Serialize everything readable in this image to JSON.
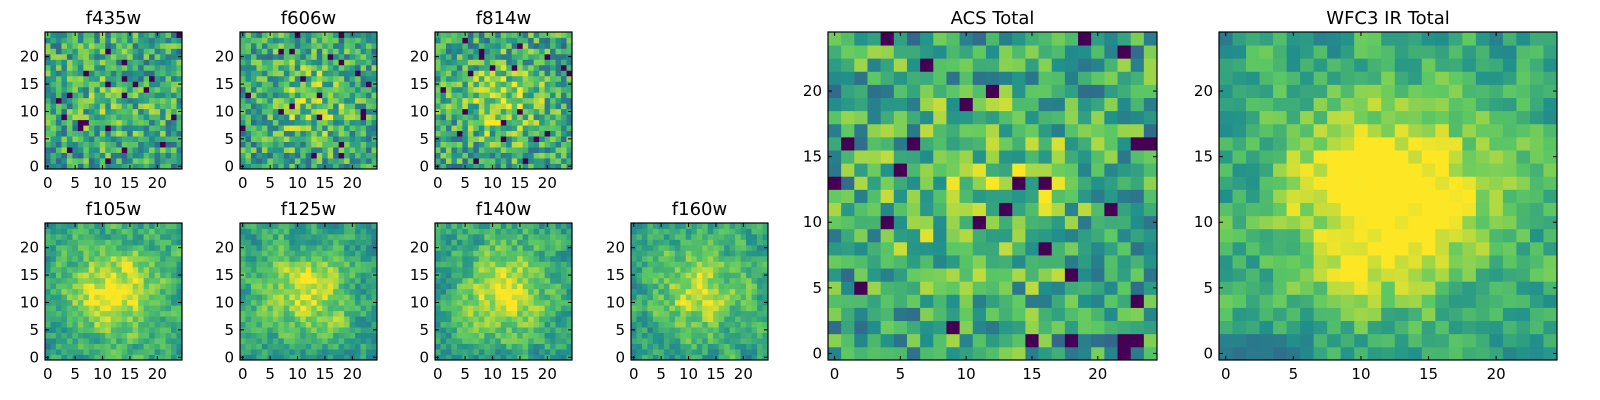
{
  "chart_data": [
    {
      "type": "heatmap",
      "title": "f435w",
      "grid_size": 25,
      "xticks": [
        0,
        5,
        10,
        15,
        20
      ],
      "yticks": [
        0,
        5,
        10,
        15,
        20
      ],
      "grid": false,
      "colormap": "viridis"
    },
    {
      "type": "heatmap",
      "title": "f606w",
      "grid_size": 25,
      "xticks": [
        0,
        5,
        10,
        15,
        20
      ],
      "yticks": [
        0,
        5,
        10,
        15,
        20
      ],
      "grid": false,
      "colormap": "viridis"
    },
    {
      "type": "heatmap",
      "title": "f814w",
      "grid_size": 25,
      "xticks": [
        0,
        5,
        10,
        15,
        20
      ],
      "yticks": [
        0,
        5,
        10,
        15,
        20
      ],
      "grid": false,
      "colormap": "viridis"
    },
    {
      "type": "heatmap",
      "title": "f105w",
      "grid_size": 25,
      "xticks": [
        0,
        5,
        10,
        15,
        20
      ],
      "yticks": [
        0,
        5,
        10,
        15,
        20
      ],
      "grid": false,
      "colormap": "viridis"
    },
    {
      "type": "heatmap",
      "title": "f125w",
      "grid_size": 25,
      "xticks": [
        0,
        5,
        10,
        15,
        20
      ],
      "yticks": [
        0,
        5,
        10,
        15,
        20
      ],
      "grid": false,
      "colormap": "viridis"
    },
    {
      "type": "heatmap",
      "title": "f140w",
      "grid_size": 25,
      "xticks": [
        0,
        5,
        10,
        15,
        20
      ],
      "yticks": [
        0,
        5,
        10,
        15,
        20
      ],
      "grid": false,
      "colormap": "viridis"
    },
    {
      "type": "heatmap",
      "title": "f160w",
      "grid_size": 25,
      "xticks": [
        0,
        5,
        10,
        15,
        20
      ],
      "yticks": [
        0,
        5,
        10,
        15,
        20
      ],
      "grid": false,
      "colormap": "viridis"
    },
    {
      "type": "heatmap",
      "title": "ACS Total",
      "grid_size": 25,
      "xticks": [
        0,
        5,
        10,
        15,
        20
      ],
      "yticks": [
        0,
        5,
        10,
        15,
        20
      ],
      "grid": false,
      "colormap": "viridis"
    },
    {
      "type": "heatmap",
      "title": "WFC3 IR Total",
      "grid_size": 25,
      "xticks": [
        0,
        5,
        10,
        15,
        20
      ],
      "yticks": [
        0,
        5,
        10,
        15,
        20
      ],
      "grid": false,
      "colormap": "viridis"
    }
  ],
  "colors": {
    "colormap_stops": [
      "#440154",
      "#3b528b",
      "#21918c",
      "#5ec962",
      "#fde725"
    ],
    "frame": "#000000",
    "background": "#ffffff"
  }
}
